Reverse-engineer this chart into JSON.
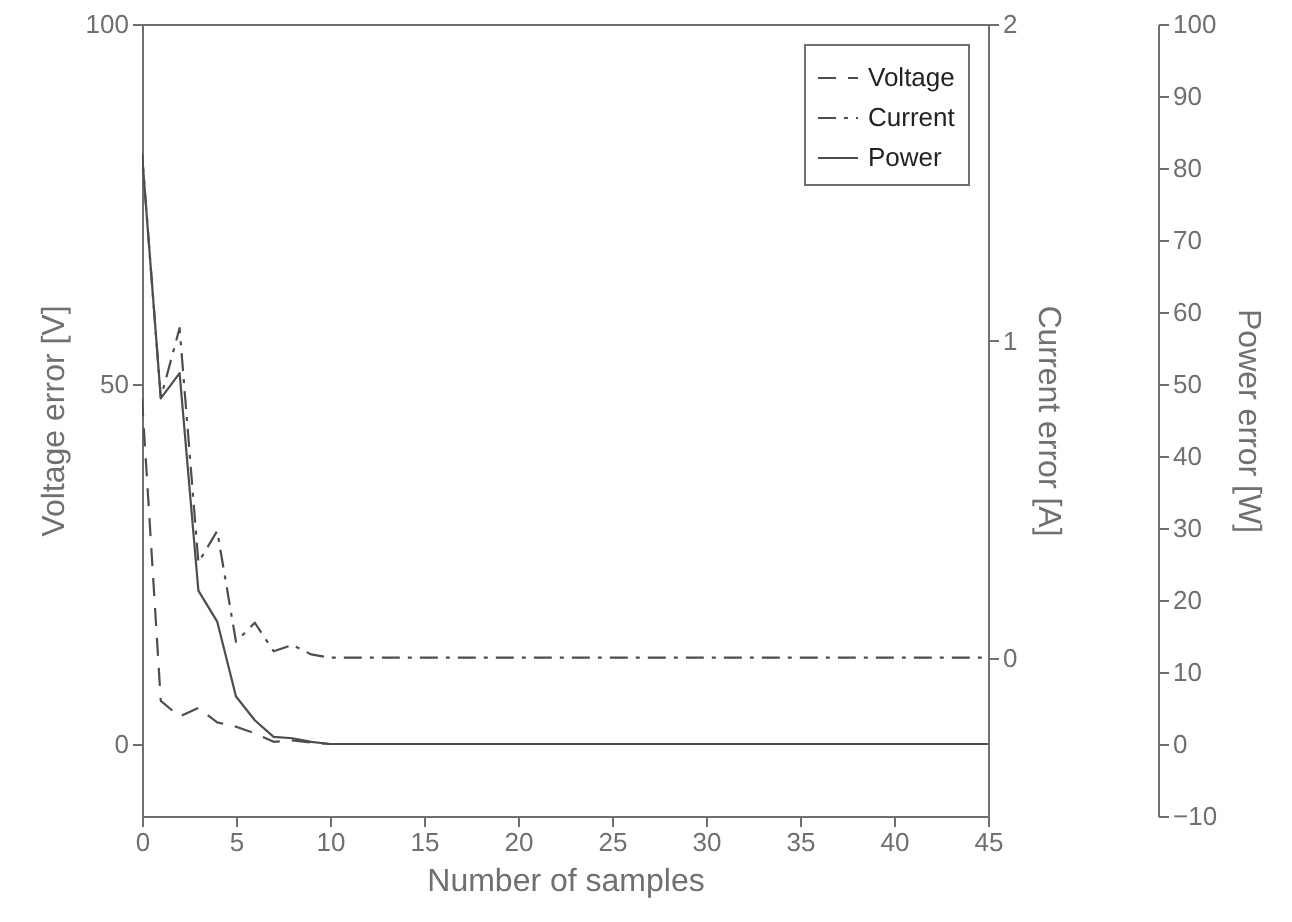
{
  "chart_data": {
    "type": "line",
    "xlabel": "Number of samples",
    "ylabel": "Voltage error [V]",
    "y2label": "Current error [A]",
    "y3label": "Power error [W]",
    "x": [
      0,
      1,
      2,
      3,
      4,
      5,
      6,
      7,
      8,
      9,
      10,
      45
    ],
    "xlim": [
      0,
      45
    ],
    "xticks": [
      0,
      5,
      10,
      15,
      20,
      25,
      30,
      35,
      40,
      45
    ],
    "ylim": [
      -10,
      100
    ],
    "yticks": [
      0,
      50,
      100
    ],
    "y2lim": [
      -0.5,
      2
    ],
    "y2ticks": [
      0,
      1,
      2
    ],
    "y3lim": [
      -10,
      100
    ],
    "y3ticks": [
      -10,
      0,
      10,
      20,
      30,
      40,
      50,
      60,
      70,
      80,
      90,
      100
    ],
    "series": [
      {
        "name": "Voltage",
        "color": "#4d4d4d",
        "line_style": "dashed",
        "values": [
          48,
          6,
          3.8,
          5,
          3,
          2.4,
          1.5,
          0.3,
          0.5,
          0.2,
          0,
          0
        ]
      },
      {
        "name": "Current",
        "color": "#4d4d4d",
        "line_style": "dashdot",
        "axis": "y2",
        "values": [
          1.59,
          0.82,
          1.04,
          0.3,
          0.4,
          0.05,
          0.11,
          0.02,
          0.04,
          0.01,
          0,
          0
        ]
      },
      {
        "name": "Power",
        "color": "#4d4d4d",
        "line_style": "solid",
        "axis": "y3",
        "values": [
          82,
          48,
          51.5,
          21.3,
          17,
          6.6,
          3.3,
          1,
          0.8,
          0.3,
          0,
          0
        ]
      }
    ],
    "legend": "top right",
    "grid": false
  }
}
